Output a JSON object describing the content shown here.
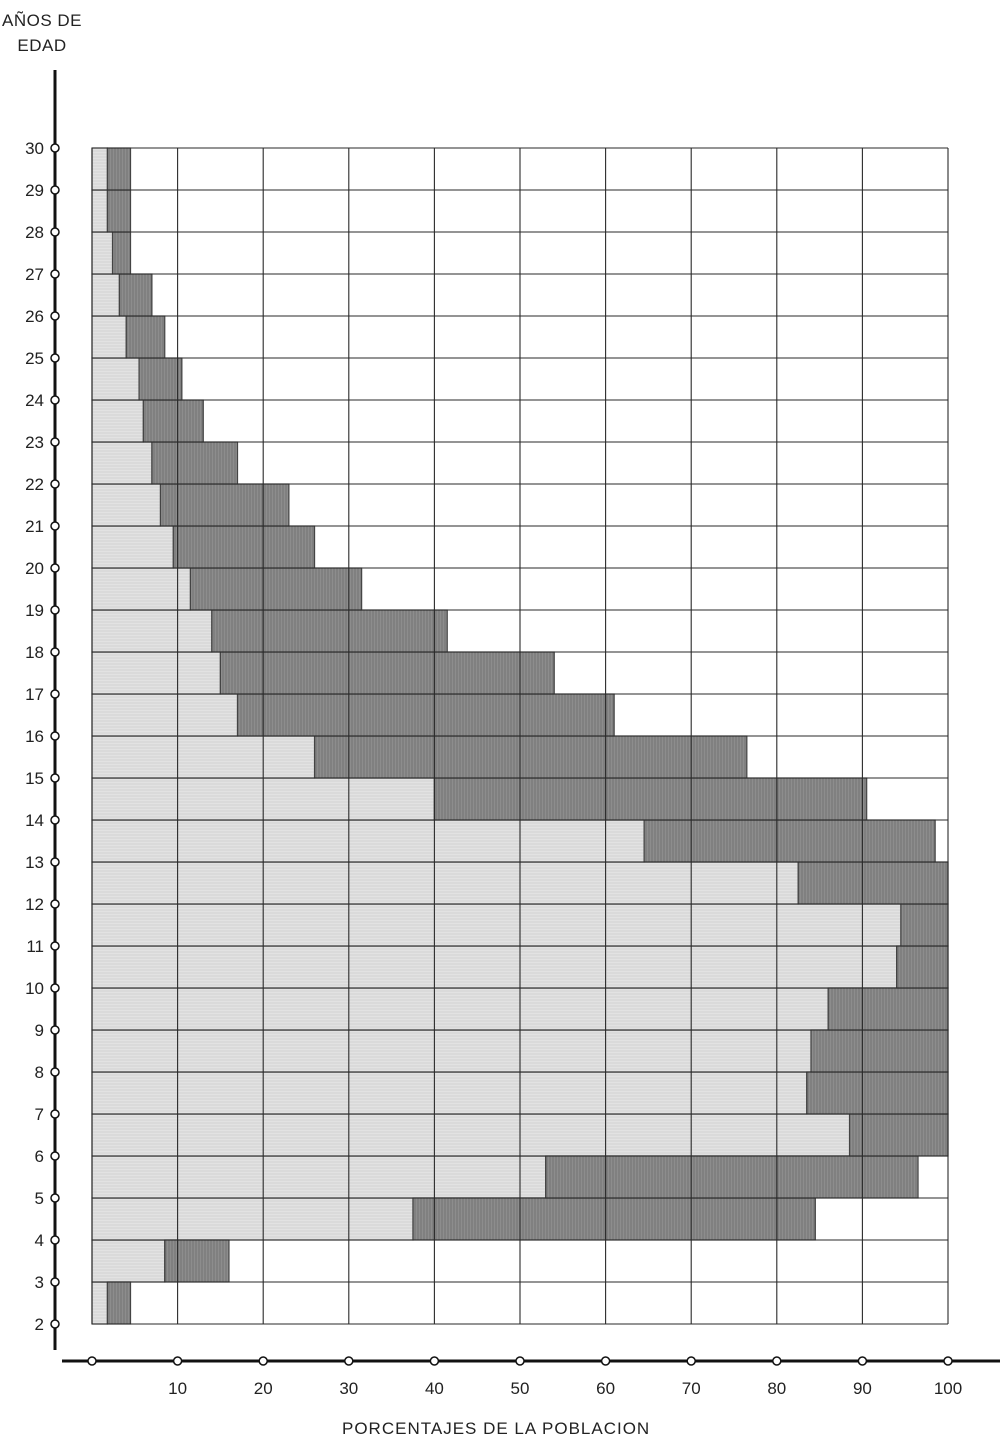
{
  "chart_data": {
    "type": "bar",
    "orientation": "horizontal",
    "ylabel": [
      "AÑOS DE",
      "EDAD"
    ],
    "xlabel": "PORCENTAJES DE LA POBLACION",
    "xlim": [
      0,
      100
    ],
    "ylim": [
      2,
      30
    ],
    "x_ticks": [
      10,
      20,
      30,
      40,
      50,
      60,
      70,
      80,
      90,
      100
    ],
    "y_ticks": [
      2,
      3,
      4,
      5,
      6,
      7,
      8,
      9,
      10,
      11,
      12,
      13,
      14,
      15,
      16,
      17,
      18,
      19,
      20,
      21,
      22,
      23,
      24,
      25,
      26,
      27,
      28,
      29,
      30
    ],
    "grid": true,
    "colors": {
      "light_band": "#dcdcdc",
      "dark_band": "#8a8a8a",
      "grid": "#2a2a2a"
    },
    "series": [
      {
        "name": "",
        "description_band": "light",
        "intervals": [
          {
            "age_from": 2,
            "age_to": 3,
            "values": [
              0,
              1.8
            ]
          },
          {
            "age_from": 3,
            "age_to": 4,
            "values": [
              0,
              8.5
            ]
          },
          {
            "age_from": 4,
            "age_to": 5,
            "values": [
              0,
              37.5
            ]
          },
          {
            "age_from": 5,
            "age_to": 6,
            "values": [
              0,
              53
            ]
          },
          {
            "age_from": 6,
            "age_to": 7,
            "values": [
              0,
              88.5
            ]
          },
          {
            "age_from": 7,
            "age_to": 8,
            "values": [
              0,
              83.5
            ]
          },
          {
            "age_from": 8,
            "age_to": 9,
            "values": [
              0,
              84
            ]
          },
          {
            "age_from": 9,
            "age_to": 10,
            "values": [
              0,
              86
            ]
          },
          {
            "age_from": 10,
            "age_to": 11,
            "values": [
              0,
              94
            ]
          },
          {
            "age_from": 11,
            "age_to": 12,
            "values": [
              0,
              94.5
            ]
          },
          {
            "age_from": 12,
            "age_to": 13,
            "values": [
              0,
              82.5
            ]
          },
          {
            "age_from": 13,
            "age_to": 14,
            "values": [
              0,
              64.5
            ]
          },
          {
            "age_from": 14,
            "age_to": 15,
            "values": [
              0,
              40
            ]
          },
          {
            "age_from": 15,
            "age_to": 16,
            "values": [
              0,
              26
            ]
          },
          {
            "age_from": 16,
            "age_to": 17,
            "values": [
              0,
              17
            ]
          },
          {
            "age_from": 17,
            "age_to": 18,
            "values": [
              0,
              15
            ]
          },
          {
            "age_from": 18,
            "age_to": 19,
            "values": [
              0,
              14
            ]
          },
          {
            "age_from": 19,
            "age_to": 20,
            "values": [
              0,
              11.5
            ]
          },
          {
            "age_from": 20,
            "age_to": 21,
            "values": [
              0,
              9.5
            ]
          },
          {
            "age_from": 21,
            "age_to": 22,
            "values": [
              0,
              8
            ]
          },
          {
            "age_from": 22,
            "age_to": 23,
            "values": [
              0,
              7
            ]
          },
          {
            "age_from": 23,
            "age_to": 24,
            "values": [
              0,
              6
            ]
          },
          {
            "age_from": 24,
            "age_to": 25,
            "values": [
              0,
              5.5
            ]
          },
          {
            "age_from": 25,
            "age_to": 26,
            "values": [
              0,
              4
            ]
          },
          {
            "age_from": 26,
            "age_to": 27,
            "values": [
              0,
              3.2
            ]
          },
          {
            "age_from": 27,
            "age_to": 28,
            "values": [
              0,
              2.4
            ]
          },
          {
            "age_from": 28,
            "age_to": 29,
            "values": [
              0,
              1.8
            ]
          },
          {
            "age_from": 29,
            "age_to": 30,
            "values": [
              0,
              1.8
            ]
          }
        ]
      },
      {
        "name": "",
        "description_band": "dark",
        "intervals": [
          {
            "age_from": 2,
            "age_to": 3,
            "values": [
              1.8,
              4.5
            ]
          },
          {
            "age_from": 3,
            "age_to": 4,
            "values": [
              8.5,
              16
            ]
          },
          {
            "age_from": 4,
            "age_to": 5,
            "values": [
              37.5,
              84.5
            ]
          },
          {
            "age_from": 5,
            "age_to": 6,
            "values": [
              53,
              96.5
            ]
          },
          {
            "age_from": 6,
            "age_to": 7,
            "values": [
              88.5,
              100
            ]
          },
          {
            "age_from": 7,
            "age_to": 8,
            "values": [
              83.5,
              100
            ]
          },
          {
            "age_from": 8,
            "age_to": 9,
            "values": [
              84,
              100
            ]
          },
          {
            "age_from": 9,
            "age_to": 10,
            "values": [
              86,
              100
            ]
          },
          {
            "age_from": 10,
            "age_to": 11,
            "values": [
              94,
              100
            ]
          },
          {
            "age_from": 11,
            "age_to": 12,
            "values": [
              94.5,
              100
            ]
          },
          {
            "age_from": 12,
            "age_to": 13,
            "values": [
              82.5,
              100
            ]
          },
          {
            "age_from": 13,
            "age_to": 14,
            "values": [
              64.5,
              98.5
            ]
          },
          {
            "age_from": 14,
            "age_to": 15,
            "values": [
              40,
              90.5
            ]
          },
          {
            "age_from": 15,
            "age_to": 16,
            "values": [
              26,
              76.5
            ]
          },
          {
            "age_from": 16,
            "age_to": 17,
            "values": [
              17,
              61
            ]
          },
          {
            "age_from": 17,
            "age_to": 18,
            "values": [
              15,
              54
            ]
          },
          {
            "age_from": 18,
            "age_to": 19,
            "values": [
              14,
              41.5
            ]
          },
          {
            "age_from": 19,
            "age_to": 20,
            "values": [
              11.5,
              31.5
            ]
          },
          {
            "age_from": 20,
            "age_to": 21,
            "values": [
              9.5,
              26
            ]
          },
          {
            "age_from": 21,
            "age_to": 22,
            "values": [
              8,
              23
            ]
          },
          {
            "age_from": 22,
            "age_to": 23,
            "values": [
              7,
              17
            ]
          },
          {
            "age_from": 23,
            "age_to": 24,
            "values": [
              6,
              13
            ]
          },
          {
            "age_from": 24,
            "age_to": 25,
            "values": [
              5.5,
              10.5
            ]
          },
          {
            "age_from": 25,
            "age_to": 26,
            "values": [
              4,
              8.5
            ]
          },
          {
            "age_from": 26,
            "age_to": 27,
            "values": [
              3.2,
              7
            ]
          },
          {
            "age_from": 27,
            "age_to": 28,
            "values": [
              2.4,
              4.5
            ]
          },
          {
            "age_from": 28,
            "age_to": 29,
            "values": [
              1.8,
              4.5
            ]
          },
          {
            "age_from": 29,
            "age_to": 30,
            "values": [
              1.8,
              4.5
            ]
          }
        ]
      }
    ]
  }
}
